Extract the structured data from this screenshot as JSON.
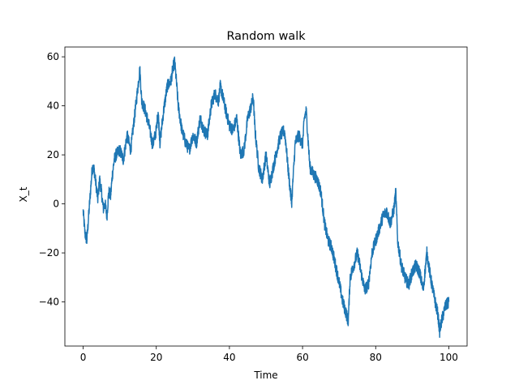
{
  "chart_data": {
    "type": "line",
    "title": "Random walk",
    "xlabel": "Time",
    "ylabel": "X_t",
    "xlim": [
      -5,
      105
    ],
    "ylim": [
      -58,
      64
    ],
    "xticks": [
      0,
      20,
      40,
      60,
      80,
      100
    ],
    "xtick_labels": [
      "0",
      "20",
      "40",
      "60",
      "80",
      "100"
    ],
    "yticks": [
      -40,
      -20,
      0,
      20,
      40,
      60
    ],
    "ytick_labels": [
      "−40",
      "−20",
      "0",
      "20",
      "40",
      "60"
    ],
    "grid": false,
    "line_color": "#1f77b4",
    "series": [
      {
        "x": [
          0,
          0.5,
          1,
          1.5,
          2,
          2.5,
          3,
          3.5,
          4,
          4.5,
          5,
          5.5,
          6,
          6.5,
          7,
          7.5,
          8,
          8.5,
          9,
          10,
          11,
          12,
          13,
          14,
          15,
          15.5,
          16,
          17,
          18,
          19,
          20,
          20.5,
          21,
          22,
          23,
          24,
          24.5,
          25,
          25.5,
          26,
          27,
          28,
          29,
          30,
          31,
          32,
          33,
          34,
          35,
          36,
          37,
          37.5,
          38,
          39,
          40,
          41,
          42,
          43,
          44,
          45,
          46,
          46.5,
          47,
          48,
          49,
          50,
          51,
          52,
          53,
          54,
          55,
          55.5,
          56,
          57,
          58,
          59,
          60,
          60.5,
          61,
          62,
          63,
          64,
          65,
          66,
          67,
          68,
          69,
          70,
          71,
          72,
          72.5,
          73,
          74,
          75,
          76,
          77,
          78,
          79,
          80,
          81,
          82,
          83,
          84,
          85,
          85.5,
          86,
          87,
          88,
          89,
          90,
          91,
          92,
          93,
          94,
          95,
          96,
          97,
          97.5,
          98,
          99,
          100
        ],
        "y": [
          -3,
          -12,
          -15,
          -5,
          5,
          15,
          14,
          8,
          2,
          10,
          5,
          -2,
          0,
          -5,
          5,
          3,
          12,
          18,
          20,
          22,
          18,
          28,
          22,
          35,
          48,
          55,
          42,
          38,
          32,
          24,
          30,
          38,
          25,
          38,
          48,
          50,
          55,
          58,
          50,
          40,
          30,
          25,
          22,
          28,
          25,
          35,
          30,
          28,
          40,
          45,
          42,
          48,
          45,
          38,
          32,
          30,
          35,
          20,
          22,
          35,
          40,
          44,
          30,
          15,
          10,
          20,
          8,
          15,
          22,
          28,
          30,
          24,
          15,
          0,
          25,
          28,
          24,
          35,
          38,
          15,
          12,
          10,
          5,
          -8,
          -15,
          -18,
          -25,
          -32,
          -40,
          -45,
          -48,
          -30,
          -25,
          -20,
          -28,
          -35,
          -33,
          -20,
          -15,
          -10,
          -5,
          -3,
          -8,
          -2,
          5,
          -15,
          -25,
          -30,
          -33,
          -28,
          -25,
          -28,
          -35,
          -20,
          -30,
          -38,
          -45,
          -52,
          -48,
          -42,
          -40
        ]
      }
    ]
  }
}
